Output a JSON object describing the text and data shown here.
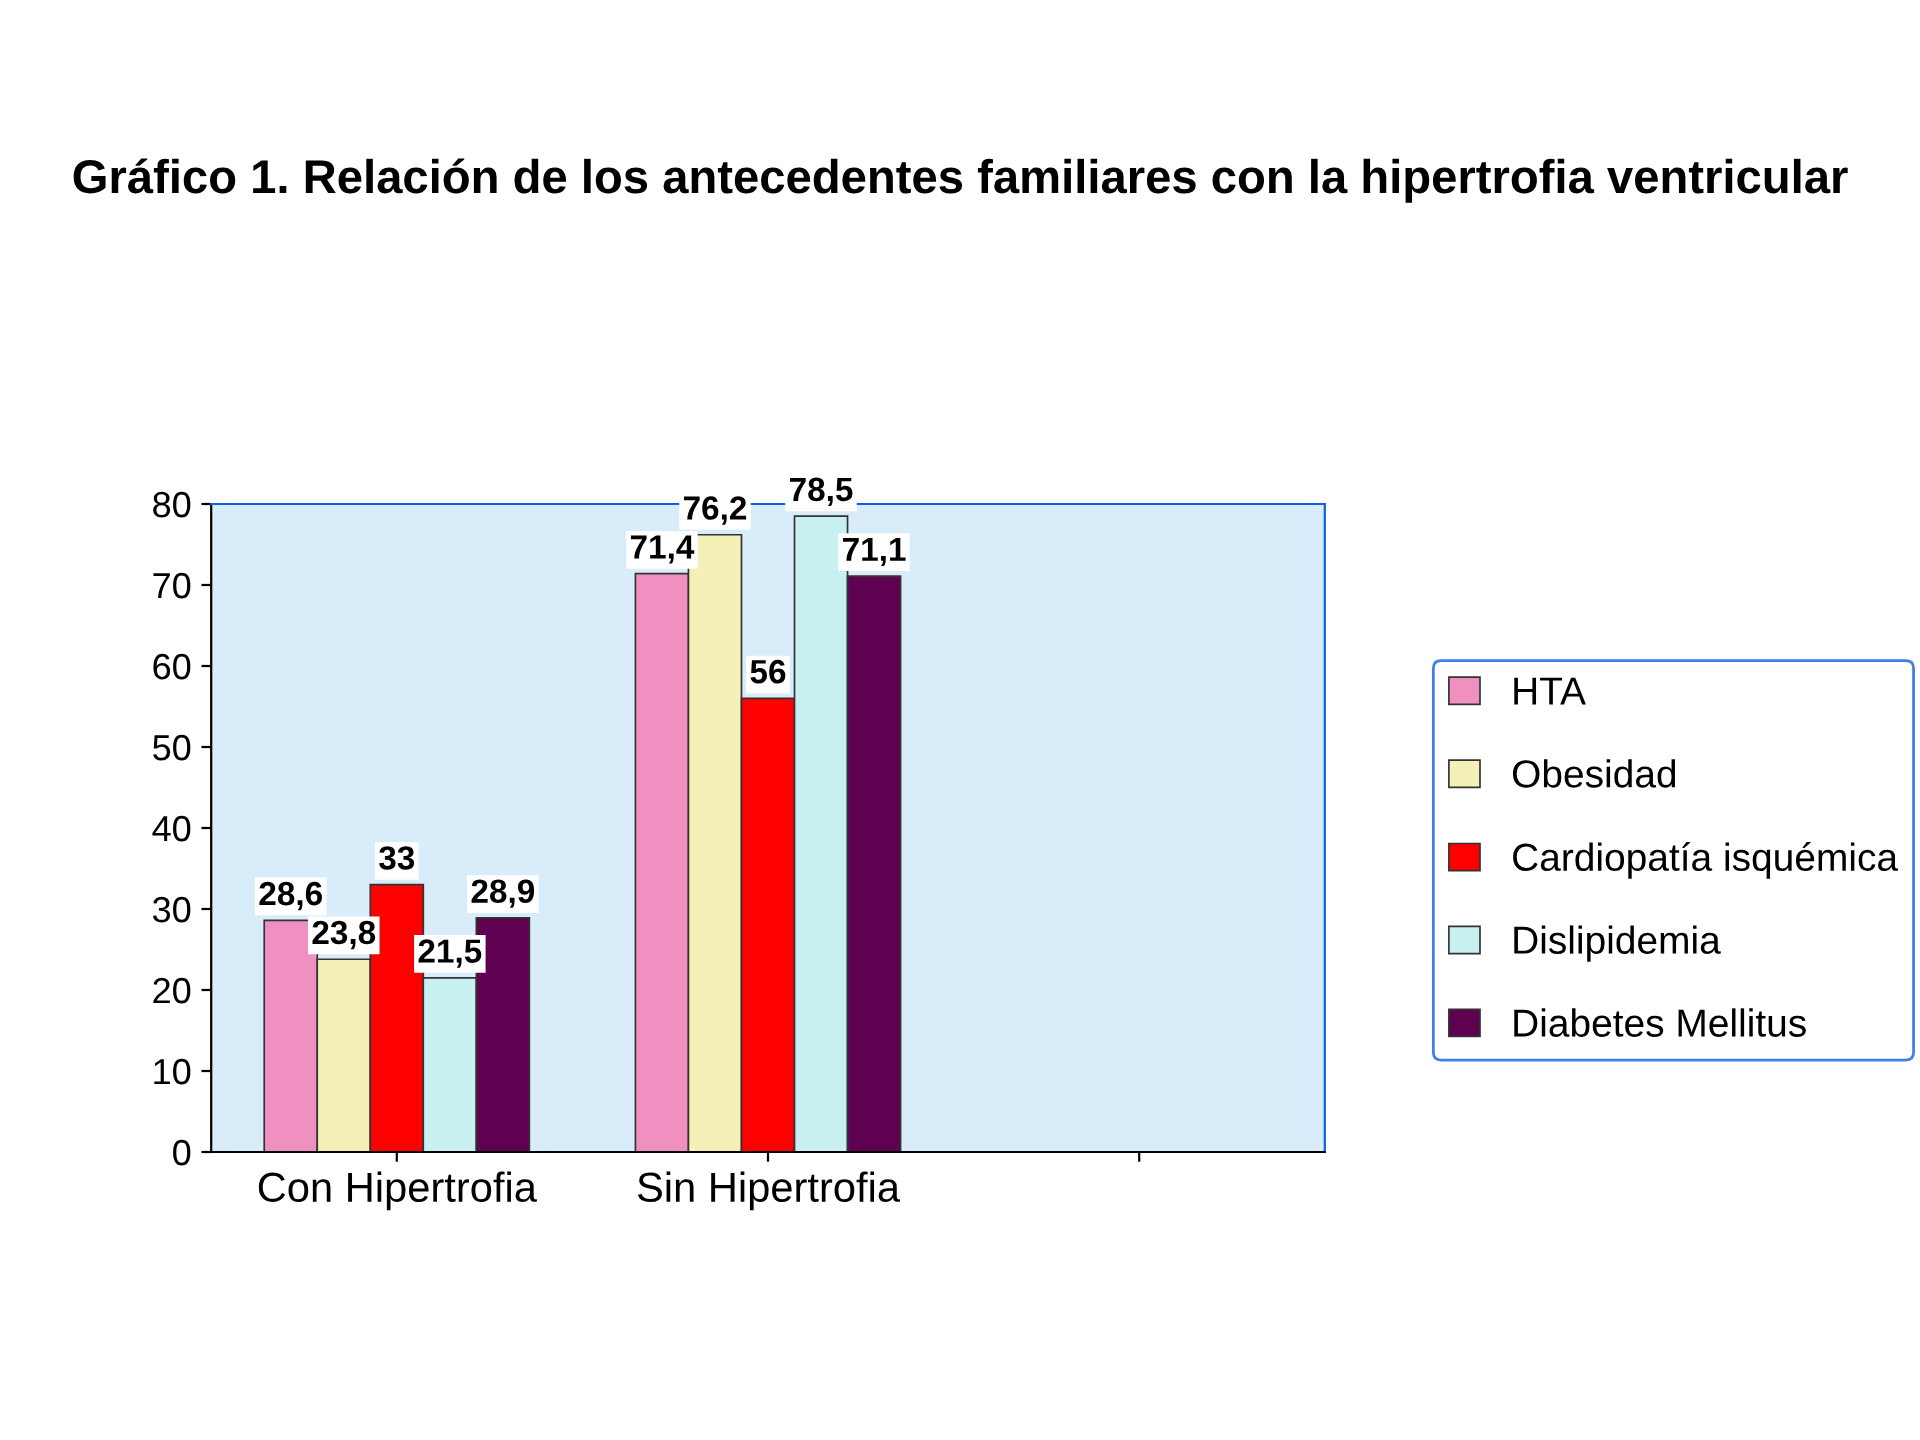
{
  "chart_data": {
    "type": "bar",
    "title": "Gráfico 1. Relación de los antecedentes familiares con la hipertrofia ventricular",
    "categories": [
      "Con Hipertrofia",
      "Sin Hipertrofia",
      null
    ],
    "series": [
      {
        "name": "HTA",
        "color": "#f090c0",
        "values": [
          28.6,
          71.4,
          null
        ],
        "value_labels": [
          "28,6",
          "71,4",
          null
        ]
      },
      {
        "name": "Obesidad",
        "color": "#f5f0b8",
        "values": [
          23.8,
          76.2,
          null
        ],
        "value_labels": [
          "23,8",
          "76,2",
          null
        ]
      },
      {
        "name": "Cardiopatía isquémica",
        "color": "#ff0000",
        "values": [
          33,
          56,
          null
        ],
        "value_labels": [
          "33",
          "56",
          null
        ]
      },
      {
        "name": "Dislipidemia",
        "color": "#c8f0f0",
        "values": [
          21.5,
          78.5,
          null
        ],
        "value_labels": [
          "21,5",
          "78,5",
          null
        ]
      },
      {
        "name": "Diabetes Mellitus",
        "color": "#600050",
        "values": [
          28.9,
          71.1,
          null
        ],
        "value_labels": [
          "28,9",
          "71,1",
          null
        ]
      }
    ],
    "ylim": [
      0,
      80
    ],
    "yticks": [
      0,
      10,
      20,
      30,
      40,
      50,
      60,
      70,
      80
    ],
    "grid": false,
    "legend": "right"
  }
}
